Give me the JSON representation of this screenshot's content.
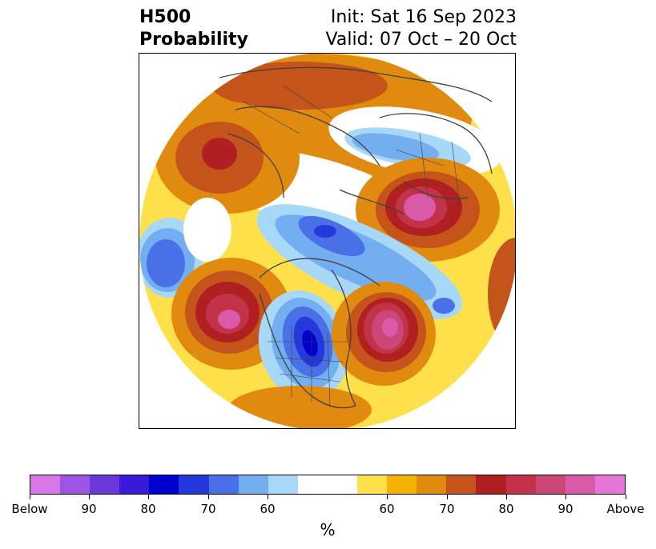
{
  "title": {
    "left_line1": "H500",
    "left_line2": "Probability",
    "right_line1": "Init: Sat 16 Sep 2023",
    "right_line2": "Valid: 07 Oct – 20 Oct"
  },
  "map": {
    "projection": "north-polar-stereographic",
    "region": "Northern Hemisphere",
    "anomalies": [
      {
        "sign": "above",
        "probability_peak": 90,
        "location": "central Siberia"
      },
      {
        "sign": "above",
        "probability_peak": 90,
        "location": "North Atlantic"
      },
      {
        "sign": "above",
        "probability_peak": 90,
        "location": "Gulf of Alaska / NE Pacific"
      },
      {
        "sign": "above",
        "probability_peak": 80,
        "location": "central Asia"
      },
      {
        "sign": "below",
        "probability_peak": 85,
        "location": "central Canada / Hudson Bay"
      },
      {
        "sign": "below",
        "probability_peak": 75,
        "location": "Arctic Ocean north of Siberia"
      },
      {
        "sign": "below",
        "probability_peak": 75,
        "location": "western North Pacific"
      },
      {
        "sign": "below",
        "probability_peak": 70,
        "location": "Eastern Europe / Greenland Sea"
      }
    ]
  },
  "colorbar": {
    "unit": "%",
    "colors": [
      "#d977e8",
      "#9b55e0",
      "#6b37da",
      "#3a1ad8",
      "#0000cc",
      "#2438dc",
      "#4a70e8",
      "#73aef0",
      "#a8d8f8",
      "#ffffff",
      "#ffffff",
      "#fde04a",
      "#f3b300",
      "#e08a10",
      "#c4541a",
      "#b02020",
      "#c23248",
      "#cc4678",
      "#d85aa8",
      "#e776d8"
    ],
    "labels": [
      "Below",
      "90",
      "80",
      "70",
      "60",
      "60",
      "70",
      "80",
      "90",
      "Above"
    ]
  }
}
